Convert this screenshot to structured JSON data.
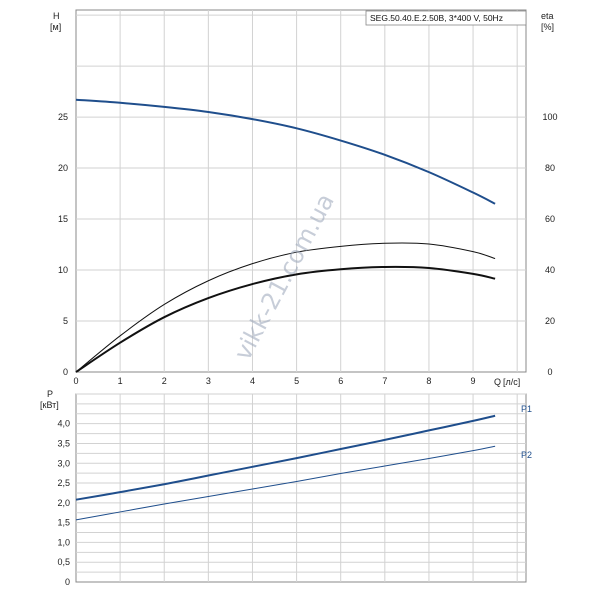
{
  "chart_data": [
    {
      "type": "line",
      "title": "SEG.50.40.E.2.50B, 3*400 V, 50Hz",
      "ylabel_left": "H",
      "yunit_left": "[м]",
      "ylabel_right": "eta",
      "yunit_right": "[%]",
      "xlabel": "Q",
      "xunit": "[л/с]",
      "xlim": [
        0,
        10.2
      ],
      "ylim_left": [
        0,
        35.5
      ],
      "ylim_right": [
        0,
        142
      ],
      "x_ticks": [
        "0",
        "1",
        "2",
        "3",
        "4",
        "5",
        "6",
        "7",
        "8",
        "9"
      ],
      "y_ticks_left": [
        "0",
        "5",
        "10",
        "15",
        "20",
        "25"
      ],
      "y_ticks_right": [
        "0",
        "20",
        "40",
        "60",
        "80",
        "100"
      ],
      "grid": true,
      "watermark": "vikk-21.com.ua",
      "series": [
        {
          "axis": "left",
          "color": "#1f4e8c",
          "x": [
            0,
            1,
            2,
            3,
            4,
            5,
            6,
            7,
            8,
            9,
            9.5
          ],
          "y": [
            26.7,
            26.4,
            26.0,
            25.5,
            24.8,
            23.9,
            22.7,
            21.3,
            19.6,
            17.6,
            16.5
          ]
        },
        {
          "axis": "right",
          "color": "#111111",
          "x": [
            0,
            1,
            2,
            3,
            4,
            5,
            6,
            7,
            8,
            9,
            9.5
          ],
          "y": [
            0,
            14.2,
            26.5,
            35.8,
            42.5,
            47.0,
            49.3,
            50.5,
            50.2,
            47.2,
            44.5
          ]
        },
        {
          "axis": "right",
          "color": "#111111",
          "x": [
            0,
            1,
            2,
            3,
            4,
            5,
            6,
            7,
            8,
            9,
            9.5
          ],
          "y": [
            0,
            11.5,
            21.5,
            29.0,
            34.5,
            38.3,
            40.3,
            41.2,
            40.8,
            38.5,
            36.6
          ]
        }
      ]
    },
    {
      "type": "line",
      "ylabel": "P",
      "yunit": "[кВт]",
      "xlim": [
        0,
        10.2
      ],
      "ylim": [
        0,
        4.75
      ],
      "y_ticks": [
        "0",
        "0,5",
        "1,0",
        "1,5",
        "2,0",
        "2,5",
        "3,0",
        "3,5",
        "4,0"
      ],
      "grid": true,
      "series": [
        {
          "name": "P1",
          "color": "#1f4e8c",
          "x": [
            0,
            1,
            2,
            3,
            4,
            5,
            6,
            7,
            8,
            9,
            9.5
          ],
          "y": [
            2.08,
            2.27,
            2.47,
            2.69,
            2.91,
            3.13,
            3.36,
            3.59,
            3.83,
            4.07,
            4.2
          ]
        },
        {
          "name": "P2",
          "color": "#1f4e8c",
          "x": [
            0,
            1,
            2,
            3,
            4,
            5,
            6,
            7,
            8,
            9,
            9.5
          ],
          "y": [
            1.57,
            1.77,
            1.97,
            2.16,
            2.35,
            2.54,
            2.74,
            2.93,
            3.12,
            3.32,
            3.43
          ]
        }
      ]
    }
  ]
}
